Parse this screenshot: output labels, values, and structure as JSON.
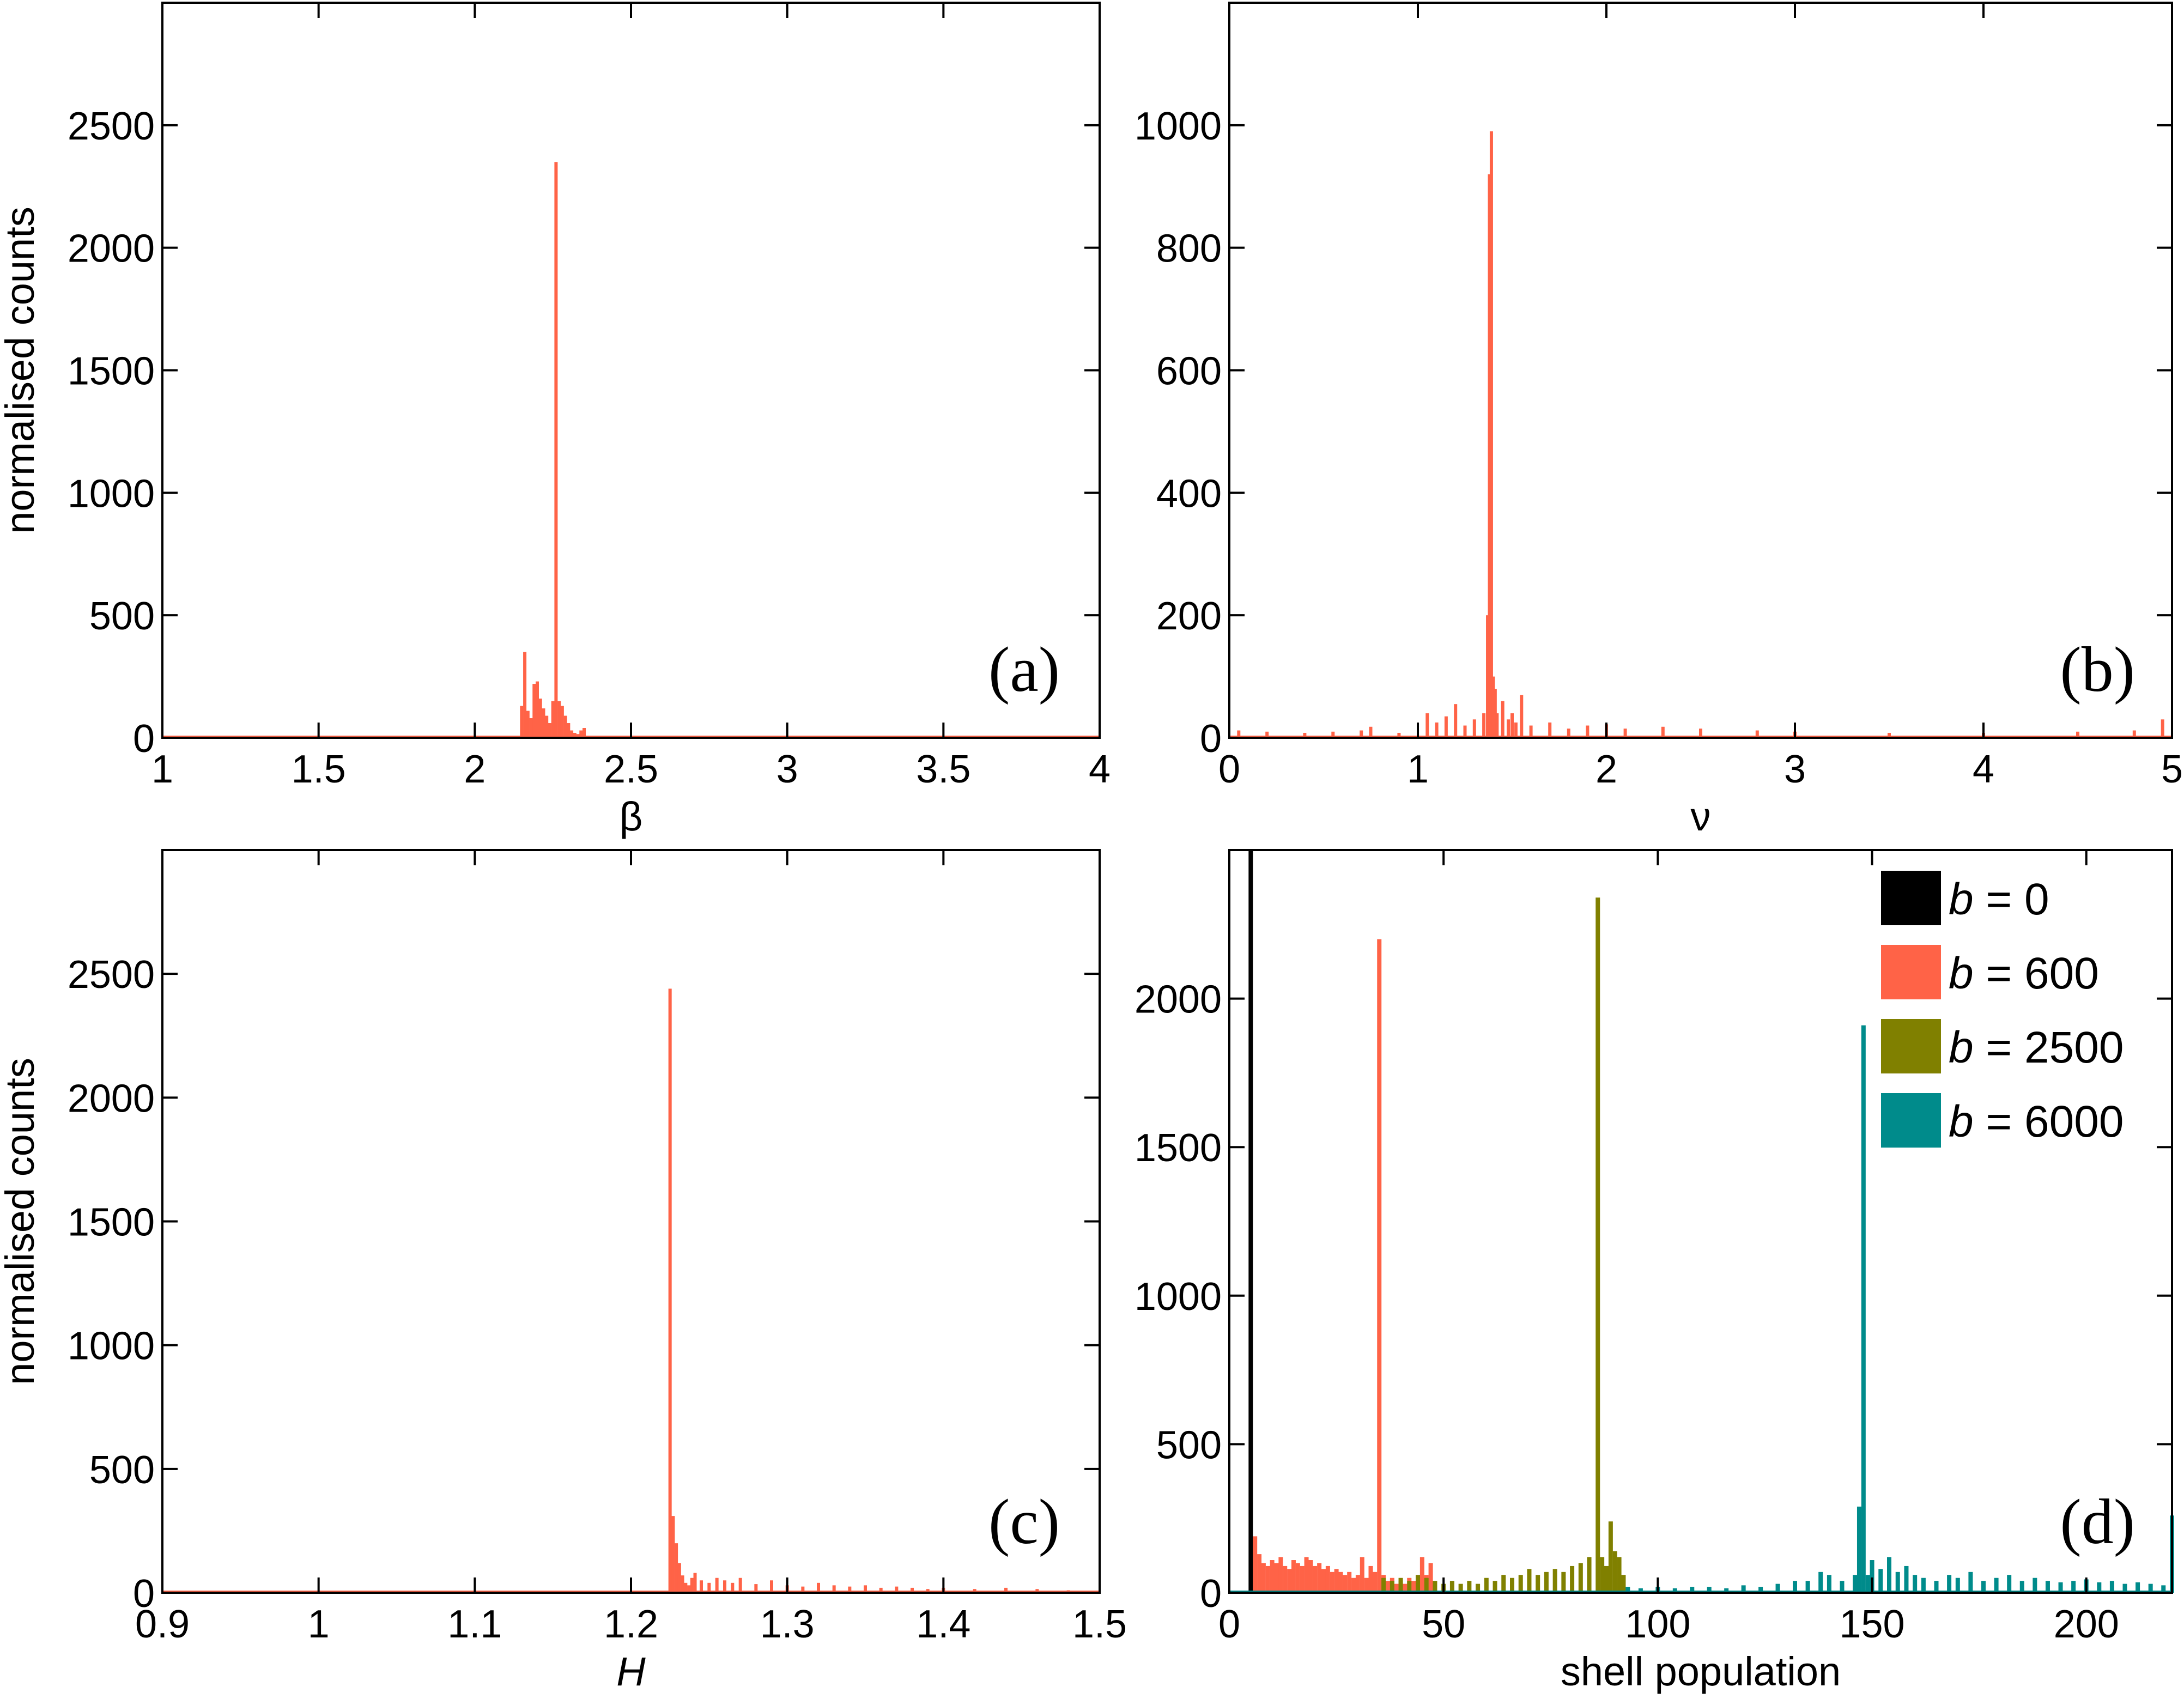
{
  "chart_data": [
    {
      "type": "bar",
      "panel": "(a)",
      "xlabel": "β",
      "ylabel": "normalised counts",
      "xlim": [
        1,
        4
      ],
      "ylim": [
        0,
        3000
      ],
      "xticks": [
        "1",
        "1.5",
        "2",
        "2.5",
        "3",
        "3.5",
        "4"
      ],
      "yticks": [
        "0",
        "500",
        "1000",
        "1500",
        "2000",
        "2500"
      ],
      "color": "#ff6347",
      "bins": [
        [
          2.15,
          130
        ],
        [
          2.16,
          350
        ],
        [
          2.17,
          110
        ],
        [
          2.18,
          80
        ],
        [
          2.19,
          220
        ],
        [
          2.2,
          230
        ],
        [
          2.21,
          160
        ],
        [
          2.22,
          120
        ],
        [
          2.23,
          90
        ],
        [
          2.24,
          60
        ],
        [
          2.25,
          150
        ],
        [
          2.26,
          2350
        ],
        [
          2.27,
          150
        ],
        [
          2.28,
          130
        ],
        [
          2.29,
          90
        ],
        [
          2.3,
          60
        ],
        [
          2.31,
          30
        ],
        [
          2.32,
          20
        ],
        [
          2.33,
          15
        ],
        [
          2.34,
          30
        ],
        [
          2.35,
          40
        ]
      ]
    },
    {
      "type": "bar",
      "panel": "(b)",
      "xlabel": "ν",
      "ylabel": "",
      "xlim": [
        0,
        5
      ],
      "ylim": [
        0,
        1200
      ],
      "xticks": [
        "0",
        "1",
        "2",
        "3",
        "4",
        "5"
      ],
      "yticks": [
        "0",
        "200",
        "400",
        "600",
        "800",
        "1000"
      ],
      "color": "#ff6347",
      "bins": [
        [
          0.05,
          12
        ],
        [
          0.2,
          10
        ],
        [
          0.4,
          8
        ],
        [
          0.55,
          10
        ],
        [
          0.7,
          12
        ],
        [
          0.75,
          18
        ],
        [
          0.9,
          8
        ],
        [
          1.05,
          40
        ],
        [
          1.1,
          25
        ],
        [
          1.15,
          35
        ],
        [
          1.2,
          55
        ],
        [
          1.25,
          20
        ],
        [
          1.3,
          30
        ],
        [
          1.35,
          40
        ],
        [
          1.37,
          200
        ],
        [
          1.38,
          920
        ],
        [
          1.39,
          990
        ],
        [
          1.4,
          100
        ],
        [
          1.41,
          80
        ],
        [
          1.42,
          40
        ],
        [
          1.45,
          60
        ],
        [
          1.48,
          30
        ],
        [
          1.5,
          40
        ],
        [
          1.52,
          25
        ],
        [
          1.55,
          70
        ],
        [
          1.6,
          20
        ],
        [
          1.7,
          25
        ],
        [
          1.8,
          15
        ],
        [
          1.9,
          20
        ],
        [
          2.0,
          22
        ],
        [
          2.1,
          15
        ],
        [
          2.3,
          18
        ],
        [
          2.5,
          15
        ],
        [
          2.8,
          12
        ],
        [
          3.0,
          10
        ],
        [
          3.5,
          8
        ],
        [
          4.0,
          8
        ],
        [
          4.5,
          10
        ],
        [
          4.8,
          12
        ],
        [
          4.95,
          30
        ]
      ]
    },
    {
      "type": "bar",
      "panel": "(c)",
      "xlabel": "H",
      "ylabel": "normalised counts",
      "xlim": [
        0.9,
        1.5
      ],
      "ylim": [
        0,
        3000
      ],
      "xticks": [
        "0.9",
        "1",
        "1.1",
        "1.2",
        "1.3",
        "1.4",
        "1.5"
      ],
      "yticks": [
        "0",
        "500",
        "1000",
        "1500",
        "2000",
        "2500"
      ],
      "color": "#ff6347",
      "bins": [
        [
          1.225,
          2440
        ],
        [
          1.227,
          310
        ],
        [
          1.229,
          200
        ],
        [
          1.231,
          120
        ],
        [
          1.233,
          70
        ],
        [
          1.235,
          40
        ],
        [
          1.237,
          30
        ],
        [
          1.239,
          60
        ],
        [
          1.241,
          80
        ],
        [
          1.245,
          50
        ],
        [
          1.25,
          40
        ],
        [
          1.255,
          60
        ],
        [
          1.26,
          50
        ],
        [
          1.265,
          40
        ],
        [
          1.27,
          60
        ],
        [
          1.28,
          35
        ],
        [
          1.29,
          50
        ],
        [
          1.3,
          30
        ],
        [
          1.31,
          25
        ],
        [
          1.32,
          40
        ],
        [
          1.33,
          30
        ],
        [
          1.34,
          25
        ],
        [
          1.35,
          30
        ],
        [
          1.36,
          20
        ],
        [
          1.37,
          25
        ],
        [
          1.38,
          20
        ],
        [
          1.39,
          15
        ],
        [
          1.4,
          20
        ],
        [
          1.42,
          15
        ],
        [
          1.44,
          20
        ],
        [
          1.46,
          15
        ],
        [
          1.48,
          10
        ]
      ]
    },
    {
      "type": "bar",
      "panel": "(d)",
      "xlabel": "shell population",
      "ylabel": "",
      "xlim": [
        0,
        220
      ],
      "ylim": [
        0,
        2500
      ],
      "xticks": [
        "0",
        "50",
        "100",
        "150",
        "200"
      ],
      "yticks": [
        "0",
        "500",
        "1000",
        "1500",
        "2000"
      ],
      "legend": {
        "position": "top-right",
        "entries": [
          {
            "prefix": "b",
            "text": " = 0",
            "color": "#000000"
          },
          {
            "prefix": "b",
            "text": " = 600",
            "color": "#ff6347"
          },
          {
            "prefix": "b",
            "text": " = 2500",
            "color": "#808000"
          },
          {
            "prefix": "b",
            "text": " = 6000",
            "color": "#008b8b"
          }
        ]
      },
      "series": [
        {
          "color": "#000000",
          "bins": [
            [
              5,
              2500
            ]
          ]
        },
        {
          "color": "#ff6347",
          "bins": [
            [
              6,
              190
            ],
            [
              7,
              130
            ],
            [
              8,
              100
            ],
            [
              9,
              90
            ],
            [
              10,
              110
            ],
            [
              11,
              100
            ],
            [
              12,
              120
            ],
            [
              13,
              90
            ],
            [
              14,
              80
            ],
            [
              15,
              110
            ],
            [
              16,
              100
            ],
            [
              17,
              90
            ],
            [
              18,
              120
            ],
            [
              19,
              110
            ],
            [
              20,
              90
            ],
            [
              21,
              100
            ],
            [
              22,
              80
            ],
            [
              23,
              90
            ],
            [
              24,
              70
            ],
            [
              25,
              80
            ],
            [
              26,
              70
            ],
            [
              27,
              60
            ],
            [
              28,
              70
            ],
            [
              29,
              50
            ],
            [
              30,
              60
            ],
            [
              31,
              120
            ],
            [
              32,
              50
            ],
            [
              33,
              90
            ],
            [
              34,
              70
            ],
            [
              35,
              2200
            ],
            [
              36,
              60
            ],
            [
              37,
              40
            ],
            [
              38,
              50
            ],
            [
              39,
              30
            ],
            [
              40,
              40
            ],
            [
              41,
              30
            ],
            [
              42,
              50
            ],
            [
              43,
              40
            ],
            [
              44,
              30
            ],
            [
              45,
              120
            ],
            [
              46,
              60
            ],
            [
              47,
              100
            ]
          ]
        },
        {
          "color": "#808000",
          "bins": [
            [
              36,
              50
            ],
            [
              38,
              40
            ],
            [
              40,
              50
            ],
            [
              42,
              40
            ],
            [
              44,
              60
            ],
            [
              46,
              50
            ],
            [
              48,
              40
            ],
            [
              50,
              30
            ],
            [
              52,
              40
            ],
            [
              54,
              30
            ],
            [
              56,
              40
            ],
            [
              58,
              30
            ],
            [
              60,
              50
            ],
            [
              62,
              40
            ],
            [
              64,
              60
            ],
            [
              66,
              50
            ],
            [
              68,
              60
            ],
            [
              70,
              80
            ],
            [
              72,
              60
            ],
            [
              74,
              70
            ],
            [
              76,
              80
            ],
            [
              78,
              70
            ],
            [
              80,
              90
            ],
            [
              82,
              100
            ],
            [
              84,
              120
            ],
            [
              86,
              2340
            ],
            [
              87,
              120
            ],
            [
              88,
              90
            ],
            [
              89,
              240
            ],
            [
              90,
              140
            ],
            [
              91,
              120
            ],
            [
              92,
              60
            ]
          ]
        },
        {
          "color": "#008b8b",
          "bins": [
            [
              93,
              20
            ],
            [
              96,
              15
            ],
            [
              100,
              20
            ],
            [
              104,
              15
            ],
            [
              108,
              20
            ],
            [
              112,
              20
            ],
            [
              116,
              15
            ],
            [
              120,
              25
            ],
            [
              124,
              20
            ],
            [
              128,
              30
            ],
            [
              132,
              40
            ],
            [
              135,
              40
            ],
            [
              138,
              70
            ],
            [
              140,
              60
            ],
            [
              143,
              40
            ],
            [
              146,
              60
            ],
            [
              147,
              290
            ],
            [
              148,
              1910
            ],
            [
              149,
              60
            ],
            [
              150,
              110
            ],
            [
              152,
              80
            ],
            [
              154,
              120
            ],
            [
              156,
              70
            ],
            [
              158,
              90
            ],
            [
              160,
              60
            ],
            [
              162,
              50
            ],
            [
              165,
              40
            ],
            [
              168,
              60
            ],
            [
              170,
              50
            ],
            [
              173,
              70
            ],
            [
              176,
              40
            ],
            [
              179,
              50
            ],
            [
              182,
              60
            ],
            [
              185,
              40
            ],
            [
              188,
              50
            ],
            [
              191,
              40
            ],
            [
              194,
              35
            ],
            [
              197,
              40
            ],
            [
              200,
              45
            ],
            [
              203,
              35
            ],
            [
              206,
              40
            ],
            [
              209,
              30
            ],
            [
              212,
              35
            ],
            [
              215,
              30
            ],
            [
              218,
              25
            ],
            [
              220,
              260
            ]
          ]
        }
      ]
    }
  ]
}
